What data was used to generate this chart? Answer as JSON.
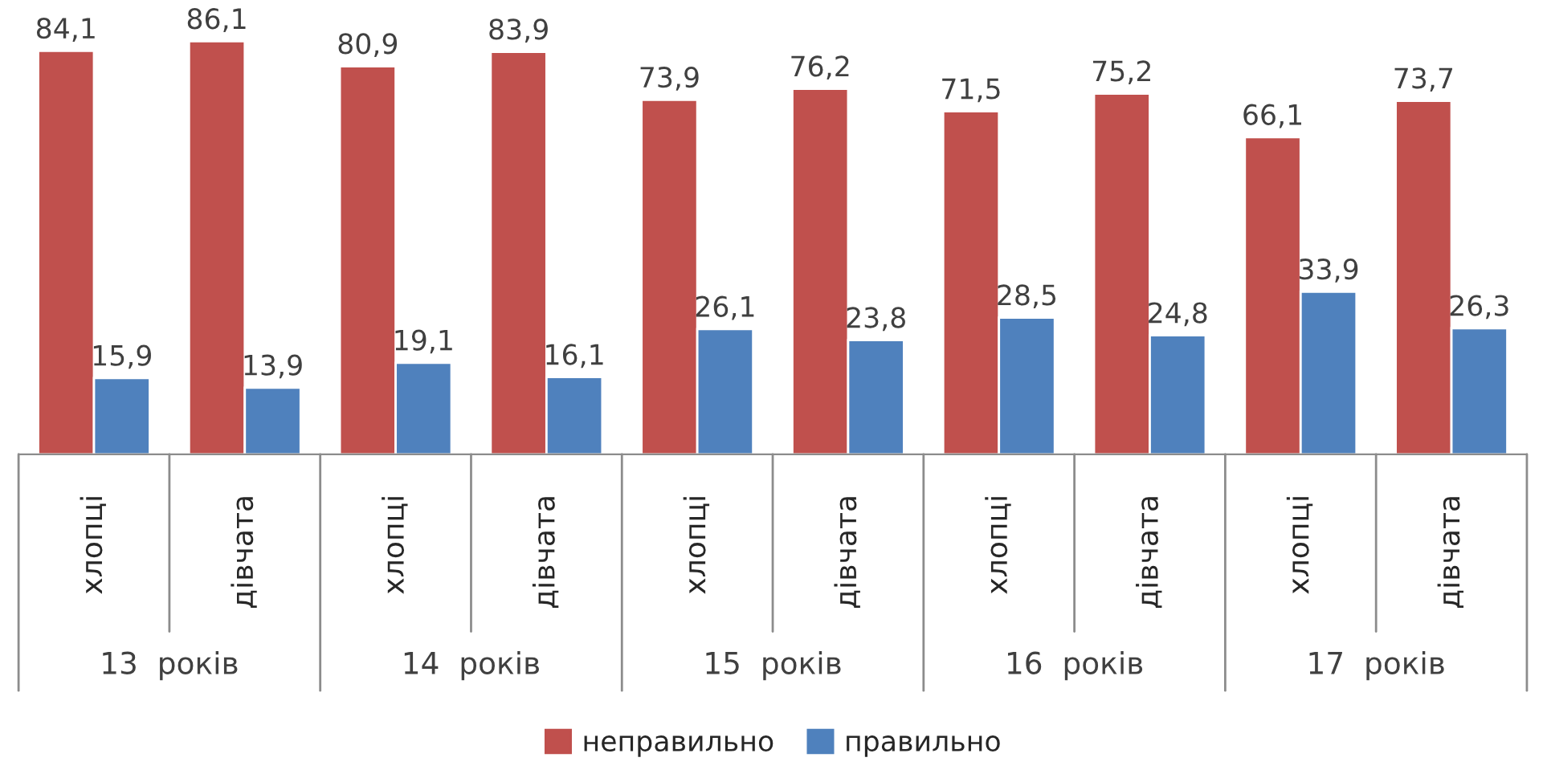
{
  "chart_data": {
    "type": "bar",
    "categories": [
      "хлопці",
      "дівчата",
      "хлопці",
      "дівчата",
      "хлопці",
      "дівчата",
      "хлопці",
      "дівчата",
      "хлопці",
      "дівчата"
    ],
    "series": [
      {
        "name": "неправильно",
        "color": "#c0504d",
        "values": [
          84.1,
          86.1,
          80.9,
          83.9,
          73.9,
          76.2,
          71.5,
          75.2,
          66.1,
          73.7
        ],
        "value_labels": [
          "84,1",
          "86,1",
          "80,9",
          "83,9",
          "73,9",
          "76,2",
          "71,5",
          "75,2",
          "66,1",
          "73,7"
        ]
      },
      {
        "name": "правильно",
        "color": "#4f81bd",
        "values": [
          15.9,
          13.9,
          19.1,
          16.1,
          26.1,
          23.8,
          28.5,
          24.8,
          33.9,
          26.3
        ],
        "value_labels": [
          "15,9",
          "13,9",
          "19,1",
          "16,1",
          "26,1",
          "23,8",
          "28,5",
          "24,8",
          "33,9",
          "26,3"
        ]
      }
    ],
    "annotations": [
      "13  років",
      "14  років",
      "15  років",
      "16  років",
      "17  років"
    ],
    "tick_labels": "x",
    "grid": false,
    "legend": "bottom"
  }
}
